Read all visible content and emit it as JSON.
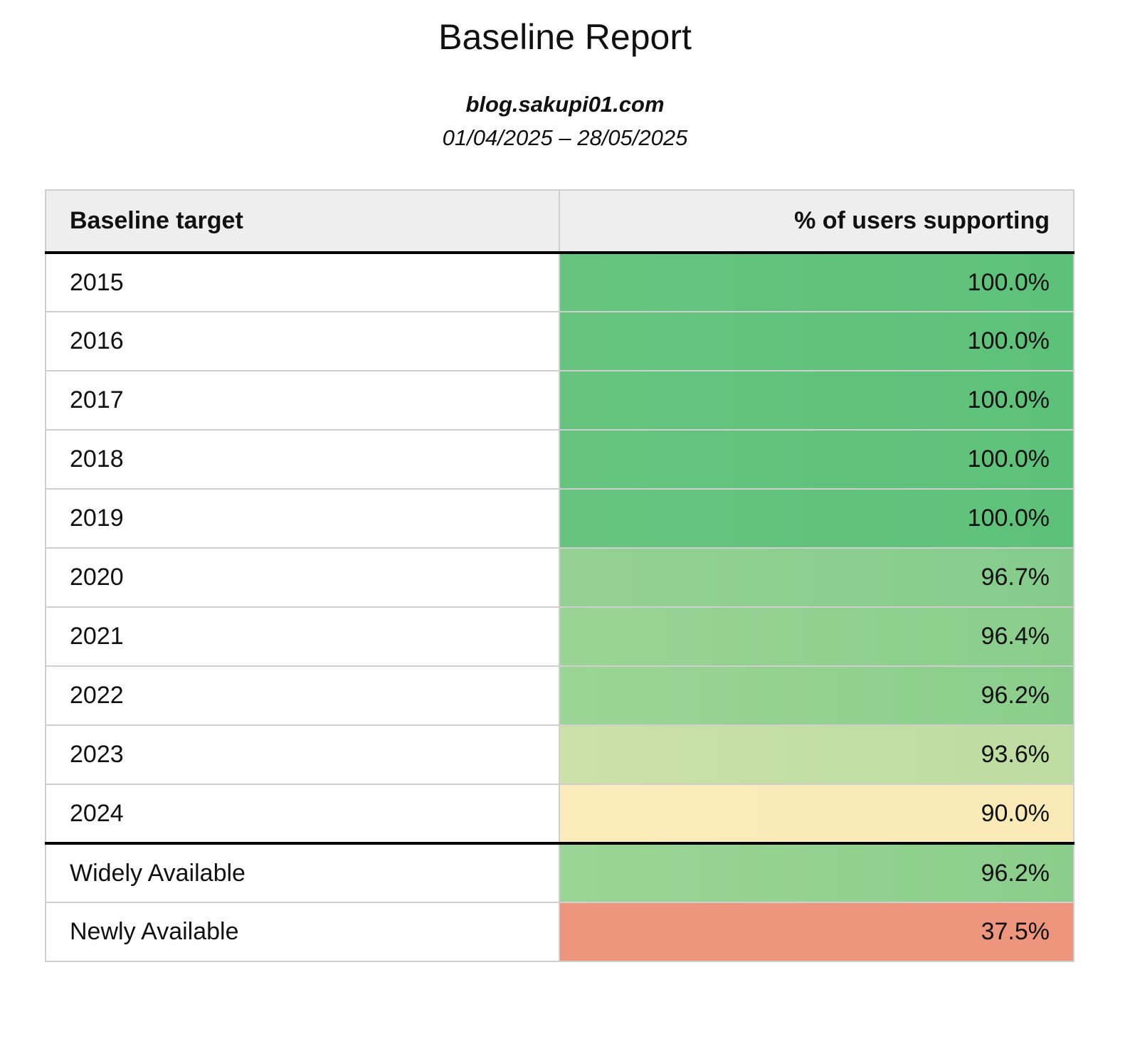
{
  "report": {
    "title": "Baseline Report",
    "site": "blog.sakupi01.com",
    "date_range": "01/04/2025 – 28/05/2025"
  },
  "table": {
    "headers": [
      "Baseline target",
      "% of users supporting"
    ],
    "rows": [
      {
        "label": "2015",
        "value": "100.0%",
        "color_from": "#66c47f",
        "color_to": "#5ec17a"
      },
      {
        "label": "2016",
        "value": "100.0%",
        "color_from": "#66c47f",
        "color_to": "#5ec17a"
      },
      {
        "label": "2017",
        "value": "100.0%",
        "color_from": "#66c47f",
        "color_to": "#5ec17a"
      },
      {
        "label": "2018",
        "value": "100.0%",
        "color_from": "#66c47f",
        "color_to": "#5ec17a"
      },
      {
        "label": "2019",
        "value": "100.0%",
        "color_from": "#66c47f",
        "color_to": "#5ec17a"
      },
      {
        "label": "2020",
        "value": "96.7%",
        "color_from": "#95d193",
        "color_to": "#85cc8c"
      },
      {
        "label": "2021",
        "value": "96.4%",
        "color_from": "#9ad495",
        "color_to": "#8acd8c"
      },
      {
        "label": "2022",
        "value": "96.2%",
        "color_from": "#9bd596",
        "color_to": "#8bcd8c"
      },
      {
        "label": "2023",
        "value": "93.6%",
        "color_from": "#cbe1a9",
        "color_to": "#bcdca0"
      },
      {
        "label": "2024",
        "value": "90.0%",
        "color_from": "#fbebba",
        "color_to": "#faeab7"
      }
    ],
    "summary": [
      {
        "label": "Widely Available",
        "value": "96.2%",
        "color_from": "#9bd596",
        "color_to": "#8bcd8c"
      },
      {
        "label": "Newly Available",
        "value": "37.5%",
        "color_from": "#ee957e",
        "color_to": "#ee957e"
      }
    ]
  }
}
